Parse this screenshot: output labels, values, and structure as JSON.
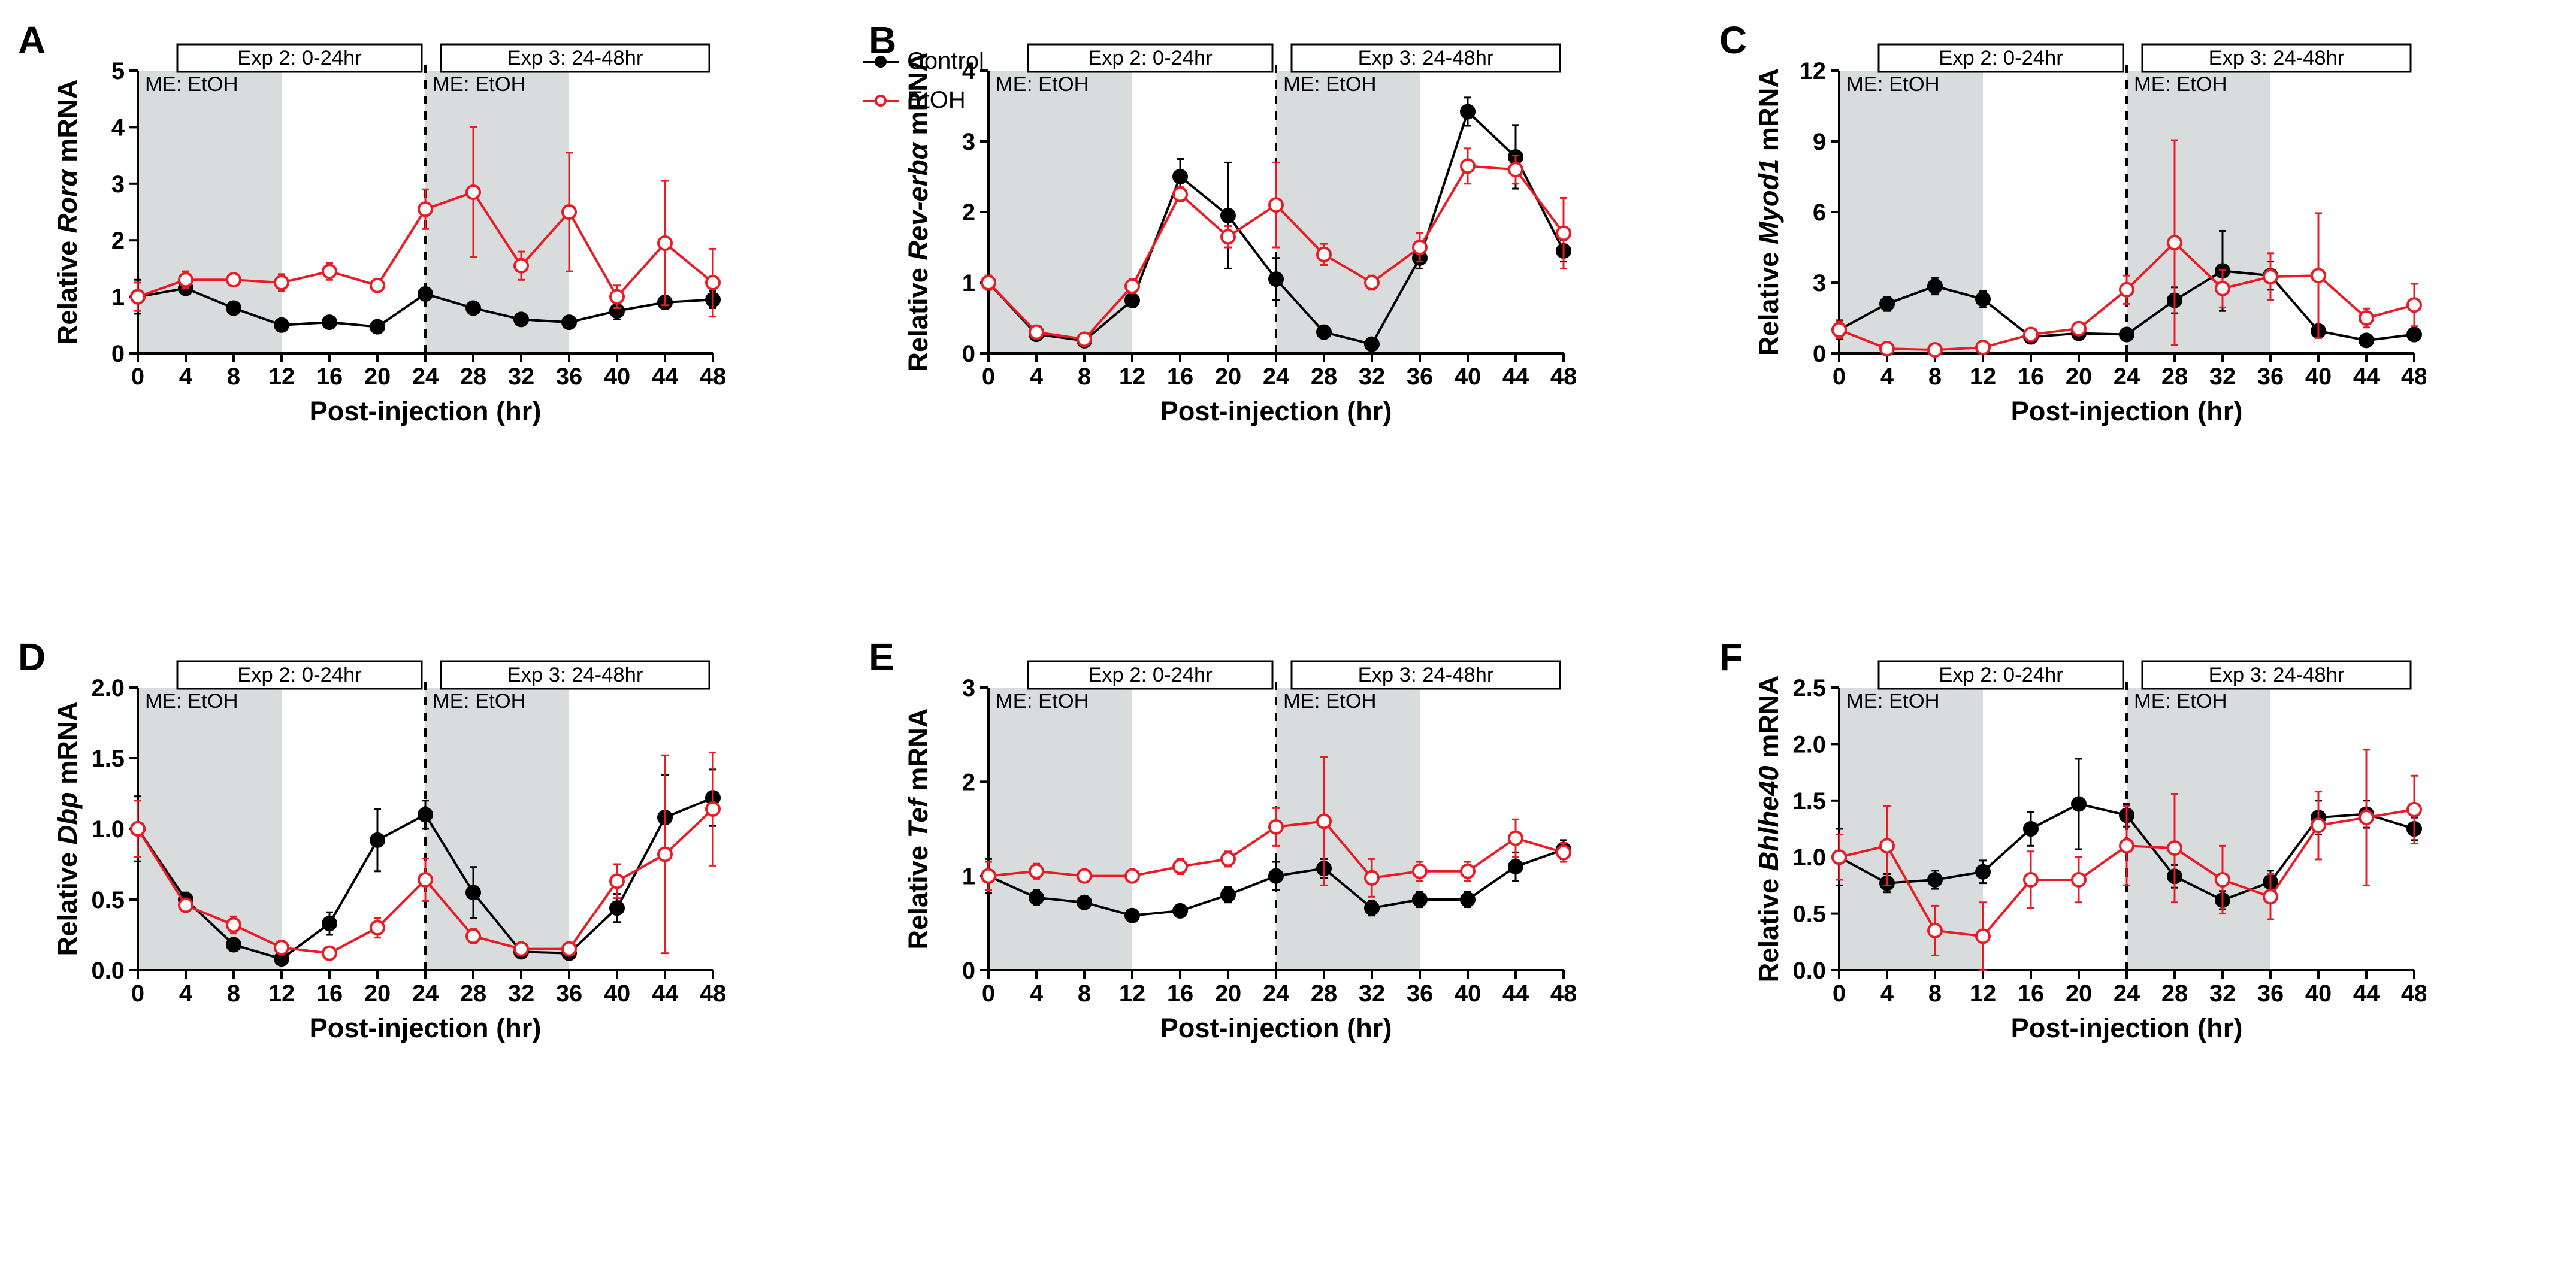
{
  "colors": {
    "control_line": "#000000",
    "control_marker_fill": "#000000",
    "etoh_line": "#ec1b23",
    "etoh_marker_fill": "#ffffff",
    "etoh_marker_stroke": "#ec1b23",
    "axis": "#000000",
    "tick": "#000000",
    "shade": "#d9dcdd",
    "box": "#000000",
    "dash": "#000000",
    "bg": "#ffffff"
  },
  "fonts": {
    "panel_letter_pt": 48,
    "axis_label_pt": 34,
    "tick_label_pt": 30,
    "annotation_pt": 26,
    "legend_pt": 30
  },
  "legend": {
    "items": [
      {
        "label": "Control",
        "color": "#000000",
        "fill": "#000000"
      },
      {
        "label": "EtOH",
        "color": "#ec1b23",
        "fill": "#ffffff"
      }
    ]
  },
  "common": {
    "xlabel": "Post-injection (hr)",
    "xticks": [
      0,
      4,
      8,
      12,
      16,
      20,
      24,
      28,
      32,
      36,
      40,
      44,
      48
    ],
    "xlim": [
      0,
      48
    ],
    "shade1": [
      0,
      12
    ],
    "shade2": [
      24,
      36
    ],
    "dashed_x": 24,
    "exp2_box": "Exp 2: 0-24hr",
    "exp3_box": "Exp 3: 24-48hr",
    "me_label": "ME: EtOH",
    "line_width": 4,
    "marker_radius": 11,
    "marker_stroke_width": 4,
    "error_cap_width": 12,
    "error_line_width": 3
  },
  "panels": {
    "A": {
      "letter": "A",
      "ylabel_prefix": "Relative ",
      "ylabel_gene": "Ror",
      "ylabel_greek": "α",
      "ylabel_suffix": " mRNA",
      "ylim": [
        0,
        5
      ],
      "yticks": [
        0,
        1,
        2,
        3,
        4,
        5
      ],
      "control": {
        "x": [
          0,
          4,
          8,
          12,
          16,
          20,
          24,
          28,
          32,
          36,
          40,
          44,
          48
        ],
        "y": [
          1.0,
          1.15,
          0.8,
          0.5,
          0.55,
          0.47,
          1.05,
          0.8,
          0.6,
          0.55,
          0.75,
          0.9,
          0.95
        ],
        "err": [
          0.3,
          0.1,
          0.1,
          0.05,
          0.05,
          0.08,
          0.1,
          0.1,
          0.05,
          0.05,
          0.15,
          0.1,
          0.15
        ]
      },
      "etoh": {
        "x": [
          0,
          4,
          8,
          12,
          16,
          20,
          24,
          28,
          32,
          36,
          40,
          44,
          48
        ],
        "y": [
          1.0,
          1.3,
          1.3,
          1.25,
          1.45,
          1.2,
          2.55,
          2.85,
          1.55,
          2.5,
          1.0,
          1.95,
          1.25
        ],
        "err": [
          0.25,
          0.15,
          0.1,
          0.15,
          0.15,
          0.1,
          0.35,
          1.15,
          0.25,
          1.05,
          0.2,
          1.1,
          0.6
        ]
      }
    },
    "B": {
      "letter": "B",
      "ylabel_prefix": "Relative ",
      "ylabel_gene": "Rev-erb",
      "ylabel_greek": "α",
      "ylabel_suffix": " mRNA",
      "ylim": [
        0,
        4
      ],
      "yticks": [
        0,
        1,
        2,
        3,
        4
      ],
      "control": {
        "x": [
          0,
          4,
          8,
          12,
          16,
          20,
          24,
          28,
          32,
          36,
          40,
          44,
          48
        ],
        "y": [
          1.0,
          0.27,
          0.18,
          0.75,
          2.5,
          1.95,
          1.05,
          0.3,
          0.13,
          1.35,
          3.42,
          2.78,
          1.45
        ],
        "err": [
          0.1,
          0.05,
          0.03,
          0.1,
          0.25,
          0.75,
          0.3,
          0.08,
          0.05,
          0.15,
          0.2,
          0.45,
          0.15
        ]
      },
      "etoh": {
        "x": [
          0,
          4,
          8,
          12,
          16,
          20,
          24,
          28,
          32,
          36,
          40,
          44,
          48
        ],
        "y": [
          1.0,
          0.3,
          0.2,
          0.95,
          2.25,
          1.65,
          2.1,
          1.4,
          1.0,
          1.5,
          2.65,
          2.6,
          1.7
        ],
        "err": [
          0.1,
          0.05,
          0.03,
          0.1,
          0.1,
          0.15,
          0.6,
          0.15,
          0.1,
          0.2,
          0.25,
          0.2,
          0.5
        ]
      }
    },
    "C": {
      "letter": "C",
      "ylabel_prefix": "Relative ",
      "ylabel_gene": "Myod1",
      "ylabel_greek": "",
      "ylabel_suffix": " mRNA",
      "ylim": [
        0,
        12
      ],
      "yticks": [
        0,
        3,
        6,
        9,
        12
      ],
      "control": {
        "x": [
          0,
          4,
          8,
          12,
          16,
          20,
          24,
          28,
          32,
          36,
          40,
          44,
          48
        ],
        "y": [
          1.0,
          2.1,
          2.85,
          2.3,
          0.7,
          0.85,
          0.8,
          2.25,
          3.5,
          3.3,
          0.95,
          0.55,
          0.8
        ],
        "err": [
          0.4,
          0.3,
          0.35,
          0.35,
          0.1,
          0.15,
          0.1,
          0.55,
          1.7,
          0.6,
          0.2,
          0.1,
          0.15
        ]
      },
      "etoh": {
        "x": [
          0,
          4,
          8,
          12,
          16,
          20,
          24,
          28,
          32,
          36,
          40,
          44,
          48
        ],
        "y": [
          1.0,
          0.2,
          0.15,
          0.25,
          0.8,
          1.05,
          2.7,
          4.7,
          2.75,
          3.25,
          3.3,
          1.5,
          2.05
        ],
        "err": [
          0.35,
          0.1,
          0.05,
          0.1,
          0.15,
          0.2,
          0.6,
          4.35,
          0.8,
          1.0,
          2.65,
          0.4,
          0.9
        ]
      }
    },
    "D": {
      "letter": "D",
      "ylabel_prefix": "Relative ",
      "ylabel_gene": "Dbp",
      "ylabel_greek": "",
      "ylabel_suffix": " mRNA",
      "ylim": [
        0,
        2.0
      ],
      "yticks": [
        0,
        0.5,
        1.0,
        1.5,
        2.0
      ],
      "ytick_decimals": 1,
      "control": {
        "x": [
          0,
          4,
          8,
          12,
          16,
          20,
          24,
          28,
          32,
          36,
          40,
          44,
          48
        ],
        "y": [
          1.0,
          0.5,
          0.18,
          0.08,
          0.33,
          0.92,
          1.1,
          0.55,
          0.13,
          0.12,
          0.44,
          1.08,
          1.22
        ],
        "err": [
          0.23,
          0.05,
          0.04,
          0.02,
          0.08,
          0.22,
          0.1,
          0.18,
          0.03,
          0.02,
          0.1,
          0.3,
          0.2
        ]
      },
      "etoh": {
        "x": [
          0,
          4,
          8,
          12,
          16,
          20,
          24,
          28,
          32,
          36,
          40,
          44,
          48
        ],
        "y": [
          1.0,
          0.46,
          0.32,
          0.16,
          0.12,
          0.3,
          0.64,
          0.24,
          0.15,
          0.15,
          0.63,
          0.82,
          1.14
        ],
        "err": [
          0.2,
          0.04,
          0.06,
          0.05,
          0.03,
          0.07,
          0.15,
          0.05,
          0.03,
          0.03,
          0.12,
          0.7,
          0.4
        ]
      }
    },
    "E": {
      "letter": "E",
      "ylabel_prefix": "Relative ",
      "ylabel_gene": "Tef",
      "ylabel_greek": "",
      "ylabel_suffix": " mRNA",
      "ylim": [
        0,
        3
      ],
      "yticks": [
        0,
        1,
        2,
        3
      ],
      "control": {
        "x": [
          0,
          4,
          8,
          12,
          16,
          20,
          24,
          28,
          32,
          36,
          40,
          44,
          48
        ],
        "y": [
          1.0,
          0.77,
          0.72,
          0.58,
          0.63,
          0.8,
          1.0,
          1.08,
          0.66,
          0.75,
          0.75,
          1.1,
          1.28
        ],
        "err": [
          0.18,
          0.08,
          0.05,
          0.05,
          0.05,
          0.08,
          0.15,
          0.1,
          0.08,
          0.08,
          0.08,
          0.15,
          0.1
        ]
      },
      "etoh": {
        "x": [
          0,
          4,
          8,
          12,
          16,
          20,
          24,
          28,
          32,
          36,
          40,
          44,
          48
        ],
        "y": [
          1.0,
          1.05,
          1.0,
          1.0,
          1.1,
          1.18,
          1.52,
          1.58,
          0.98,
          1.05,
          1.05,
          1.4,
          1.25
        ],
        "err": [
          0.15,
          0.08,
          0.05,
          0.05,
          0.08,
          0.08,
          0.2,
          0.68,
          0.2,
          0.1,
          0.1,
          0.2,
          0.1
        ]
      }
    },
    "F": {
      "letter": "F",
      "ylabel_prefix": "Relative ",
      "ylabel_gene": "Bhlhe40",
      "ylabel_greek": "",
      "ylabel_suffix": " mRNA",
      "ylim": [
        0,
        2.5
      ],
      "yticks": [
        0,
        0.5,
        1.0,
        1.5,
        2.0,
        2.5
      ],
      "ytick_decimals": 1,
      "control": {
        "x": [
          0,
          4,
          8,
          12,
          16,
          20,
          24,
          28,
          32,
          36,
          40,
          44,
          48
        ],
        "y": [
          1.0,
          0.77,
          0.8,
          0.87,
          1.25,
          1.47,
          1.37,
          0.83,
          0.62,
          0.78,
          1.35,
          1.38,
          1.25
        ],
        "err": [
          0.25,
          0.08,
          0.08,
          0.1,
          0.15,
          0.4,
          0.1,
          0.1,
          0.08,
          0.1,
          0.15,
          0.12,
          0.1
        ]
      },
      "etoh": {
        "x": [
          0,
          4,
          8,
          12,
          16,
          20,
          24,
          28,
          32,
          36,
          40,
          44,
          48
        ],
        "y": [
          1.0,
          1.1,
          0.35,
          0.3,
          0.8,
          0.8,
          1.1,
          1.08,
          0.8,
          0.65,
          1.28,
          1.35,
          1.42
        ],
        "err": [
          0.2,
          0.35,
          0.22,
          0.3,
          0.25,
          0.2,
          0.35,
          0.48,
          0.3,
          0.2,
          0.3,
          0.6,
          0.3
        ]
      }
    }
  }
}
